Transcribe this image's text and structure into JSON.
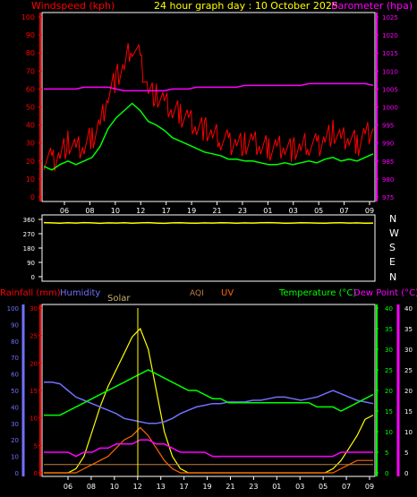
{
  "header": {
    "left": "Windspeed (kph)",
    "center": "24 hour graph day : 10 October 2025",
    "right": "Barometer (hpa)"
  },
  "colors": {
    "wind_gust": "#ff0000",
    "wind_avg": "#00ff00",
    "barometer": "#ff00ff",
    "direction": "#ffff00",
    "rain": "#ff0000",
    "humidity": "#7070ff",
    "solar": "#ffff00",
    "uv": "#ff6600",
    "temperature": "#00ff00",
    "dew": "#ff00ff",
    "aqi": "#c08040",
    "axis": "#ffffff"
  },
  "bottom_header": {
    "rain": "Rainfall (mm)",
    "humidity": "Humidity",
    "solar": "Solar",
    "aqi": "AQI",
    "uv": "UV",
    "temp": "Temperature (°C)",
    "dew": "Dew Point (°C)"
  },
  "direction_labels": [
    "N",
    "W",
    "S",
    "E",
    "N"
  ],
  "chart_data": [
    {
      "type": "line",
      "name": "wind-barometer",
      "x_ticks": [
        "06",
        "08",
        "10",
        "12",
        "17",
        "19",
        "21",
        "23",
        "01",
        "03",
        "05",
        "07",
        "09"
      ],
      "ylim_left": [
        0,
        100
      ],
      "yticks_left": [
        0,
        10,
        20,
        30,
        40,
        50,
        60,
        70,
        80,
        90,
        100
      ],
      "ylim_right": [
        975,
        1025
      ],
      "yticks_right": [
        975,
        980,
        985,
        990,
        995,
        1000,
        1005,
        1010,
        1015,
        1020,
        1025
      ],
      "series": [
        {
          "name": "Windspeed gust",
          "axis": "left",
          "values": [
            22,
            20,
            24,
            30,
            26,
            28,
            33,
            40,
            58,
            66,
            72,
            85,
            76,
            60,
            56,
            52,
            48,
            46,
            44,
            40,
            38,
            34,
            33,
            30,
            31,
            29,
            30,
            28,
            27,
            28,
            29,
            26,
            27,
            30,
            28,
            33,
            36,
            31,
            33,
            29,
            35,
            38
          ]
        },
        {
          "name": "Windspeed average",
          "axis": "left",
          "values": [
            17,
            15,
            18,
            20,
            18,
            20,
            22,
            28,
            38,
            44,
            48,
            52,
            48,
            42,
            40,
            37,
            33,
            31,
            29,
            27,
            25,
            24,
            23,
            21,
            21,
            20,
            20,
            19,
            18,
            18,
            19,
            18,
            19,
            20,
            19,
            21,
            22,
            20,
            21,
            20,
            22,
            24
          ]
        },
        {
          "name": "Barometer",
          "axis": "right",
          "values": [
            1005,
            1005,
            1005,
            1005,
            1005,
            1005.5,
            1005.5,
            1005.5,
            1005.5,
            1005,
            1004.5,
            1004.5,
            1004.5,
            1004.5,
            1004.5,
            1004.5,
            1005,
            1005,
            1005,
            1005.5,
            1005.5,
            1005.5,
            1005.5,
            1005.5,
            1005.5,
            1006,
            1006,
            1006,
            1006,
            1006,
            1006,
            1006,
            1006,
            1006.5,
            1006.5,
            1006.5,
            1006.5,
            1006.5,
            1006.5,
            1006.5,
            1006.5,
            1006
          ]
        }
      ]
    },
    {
      "type": "line",
      "name": "wind-direction",
      "ylim": [
        0,
        360
      ],
      "yticks": [
        0,
        90,
        180,
        270,
        360
      ],
      "series": [
        {
          "name": "Wind direction",
          "values": [
            340,
            338,
            336,
            339,
            337,
            340,
            338,
            335,
            338,
            337,
            339,
            336,
            338,
            340,
            337,
            335,
            338,
            339,
            337,
            336,
            338,
            337,
            339,
            338,
            336,
            338,
            337,
            339,
            340,
            338,
            336,
            337,
            339,
            338,
            337,
            336,
            338,
            339,
            337,
            338,
            336,
            337
          ]
        }
      ]
    },
    {
      "type": "line",
      "name": "rain-humidity-solar-temperature",
      "x_ticks": [
        "06",
        "08",
        "10",
        "12",
        "13",
        "17",
        "19",
        "21",
        "23",
        "01",
        "03",
        "05",
        "07",
        "09"
      ],
      "ylim_rain": [
        0,
        30
      ],
      "yticks_rain": [
        0,
        5,
        10,
        15,
        20,
        25,
        30
      ],
      "ylim_humidity": [
        0,
        100
      ],
      "yticks_humidity": [
        0,
        10,
        20,
        30,
        40,
        50,
        60,
        70,
        80,
        90,
        100
      ],
      "ylim_temp": [
        0,
        40
      ],
      "yticks_temp": [
        0,
        5,
        10,
        15,
        20,
        25,
        30,
        35,
        40
      ],
      "series": [
        {
          "name": "Humidity",
          "axis": "humidity",
          "values": [
            55,
            55,
            54,
            50,
            46,
            44,
            42,
            40,
            38,
            36,
            33,
            32,
            31,
            30,
            30,
            31,
            33,
            36,
            38,
            40,
            41,
            42,
            42,
            43,
            43,
            43,
            44,
            44,
            45,
            46,
            46,
            45,
            44,
            45,
            46,
            48,
            50,
            48,
            46,
            44,
            43,
            42
          ]
        },
        {
          "name": "Temperature",
          "axis": "temp",
          "values": [
            14,
            14,
            14,
            15,
            16,
            17,
            18,
            19,
            20,
            21,
            22,
            23,
            24,
            25,
            24,
            23,
            22,
            21,
            20,
            20,
            19,
            18,
            18,
            17,
            17,
            17,
            17,
            17,
            17,
            17,
            17,
            17,
            17,
            17,
            16,
            16,
            16,
            15,
            16,
            17,
            18,
            19
          ]
        },
        {
          "name": "Dew Point",
          "axis": "temp",
          "values": [
            5,
            5,
            5,
            5,
            4,
            5,
            5,
            6,
            6,
            7,
            7,
            7,
            8,
            8,
            7,
            7,
            6,
            5,
            5,
            5,
            5,
            4,
            4,
            4,
            4,
            4,
            4,
            4,
            4,
            4,
            4,
            4,
            4,
            4,
            4,
            4,
            4,
            5,
            5,
            5,
            5,
            5
          ]
        },
        {
          "name": "Solar",
          "axis": "temp",
          "values": [
            0,
            0,
            0,
            0,
            1,
            4,
            10,
            16,
            21,
            25,
            29,
            33,
            35,
            30,
            20,
            10,
            4,
            1,
            0,
            0,
            0,
            0,
            0,
            0,
            0,
            0,
            0,
            0,
            0,
            0,
            0,
            0,
            0,
            0,
            0,
            0,
            1,
            3,
            6,
            9,
            13,
            14
          ]
        },
        {
          "name": "UV",
          "axis": "temp",
          "values": [
            0,
            0,
            0,
            0,
            0,
            1,
            2,
            3,
            4,
            6,
            8,
            9,
            11,
            9,
            6,
            3,
            1,
            0,
            0,
            0,
            0,
            0,
            0,
            0,
            0,
            0,
            0,
            0,
            0,
            0,
            0,
            0,
            0,
            0,
            0,
            0,
            0,
            1,
            2,
            3,
            3,
            3
          ]
        },
        {
          "name": "AQI",
          "axis": "temp",
          "values": [
            2,
            2,
            2,
            2,
            2,
            2,
            2,
            2,
            2,
            2,
            2,
            2,
            2,
            2,
            2,
            2,
            2,
            2,
            2,
            2,
            2,
            2,
            2,
            2,
            2,
            2,
            2,
            2,
            2,
            2,
            2,
            2,
            2,
            2,
            2,
            2,
            2,
            2,
            2,
            2,
            2,
            2
          ]
        }
      ]
    }
  ]
}
